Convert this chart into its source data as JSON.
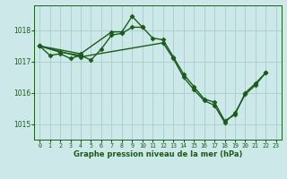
{
  "title": "Graphe pression niveau de la mer (hPa)",
  "bg_color": "#cce8e8",
  "grid_color": "#aacccc",
  "line_color": "#1a5c1a",
  "xlim": [
    -0.5,
    23.5
  ],
  "ylim": [
    1014.5,
    1018.8
  ],
  "yticks": [
    1015,
    1016,
    1017,
    1018
  ],
  "xticks": [
    0,
    1,
    2,
    3,
    4,
    5,
    6,
    7,
    8,
    9,
    10,
    11,
    12,
    13,
    14,
    15,
    16,
    17,
    18,
    19,
    20,
    21,
    22,
    23
  ],
  "series": [
    {
      "x": [
        0,
        1,
        2,
        3,
        4,
        5,
        6,
        7,
        8,
        9,
        10,
        11,
        12,
        13,
        14,
        15,
        16,
        17,
        18,
        19,
        20,
        21,
        22
      ],
      "y": [
        1017.5,
        1017.2,
        1017.25,
        1017.1,
        1017.2,
        1017.05,
        1017.4,
        1017.85,
        1017.9,
        1018.1,
        1018.1,
        1017.75,
        1017.7,
        1017.15,
        1016.6,
        1016.2,
        1015.8,
        1015.7,
        1015.1,
        1015.3,
        1016.0,
        1016.3,
        1016.65
      ]
    },
    {
      "x": [
        0,
        4,
        7,
        8,
        9,
        10
      ],
      "y": [
        1017.5,
        1017.25,
        1017.95,
        1017.95,
        1018.45,
        1018.1
      ]
    },
    {
      "x": [
        0,
        2,
        4
      ],
      "y": [
        1017.5,
        1017.3,
        1017.2
      ]
    },
    {
      "x": [
        0,
        4,
        12,
        13,
        14,
        15,
        16,
        17,
        18,
        19,
        20,
        21,
        22
      ],
      "y": [
        1017.5,
        1017.15,
        1017.6,
        1017.1,
        1016.5,
        1016.1,
        1015.75,
        1015.6,
        1015.05,
        1015.35,
        1015.95,
        1016.25,
        1016.65
      ]
    }
  ],
  "lw": 1.0,
  "ms": 2.5,
  "marker": "D",
  "title_fontsize": 6.0,
  "xtick_fontsize": 4.8,
  "ytick_fontsize": 5.5
}
